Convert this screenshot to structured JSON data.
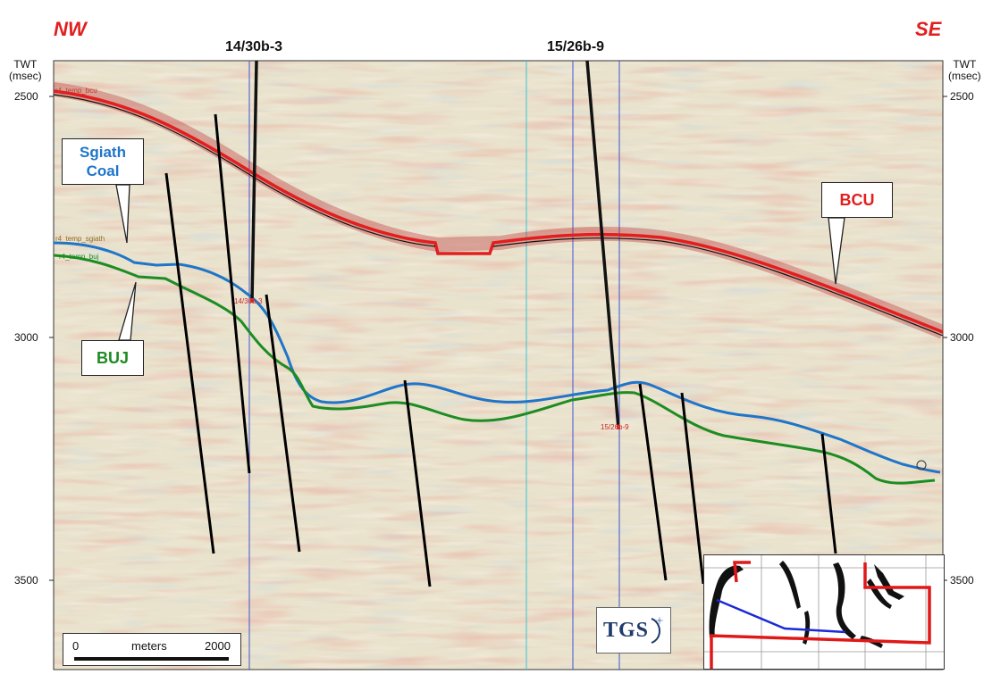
{
  "header": {
    "left_direction": "NW",
    "right_direction": "SE"
  },
  "wells": [
    {
      "name": "14/30b-3",
      "tag": "14/30b-3"
    },
    {
      "name": "15/26b-9",
      "tag": "15/26b-9"
    }
  ],
  "axis": {
    "left_unit_line1": "TWT",
    "left_unit_line2": "(msec)",
    "right_unit_line1": "TWT",
    "right_unit_line2": "(msec)",
    "ticks": [
      {
        "label": "2500",
        "value": 2500
      },
      {
        "label": "3000",
        "value": 3000
      },
      {
        "label": "3500",
        "value": 3500
      }
    ]
  },
  "horizons": {
    "bcu_label": "BCU",
    "sgiath_label_line1": "Sgiath",
    "sgiath_label_line2": "Coal",
    "buj_label": "BUJ",
    "bcu_tag": "r4_temp_bcu",
    "sgiath_tag": "r4_temp_sgiath",
    "buj_tag": "r4_temp_buj"
  },
  "scale_bar": {
    "start": "0",
    "unit": "meters",
    "end": "2000"
  },
  "logo": {
    "text": "TGS"
  },
  "colors": {
    "bcu": "#e21e1e",
    "sgiath": "#1f75c9",
    "buj": "#1d8c22",
    "fault": "#000000",
    "well_line": "#111111",
    "direction": "#e21e1e",
    "inset_outline": "#e01818",
    "inset_line": "#1a2ad6"
  }
}
